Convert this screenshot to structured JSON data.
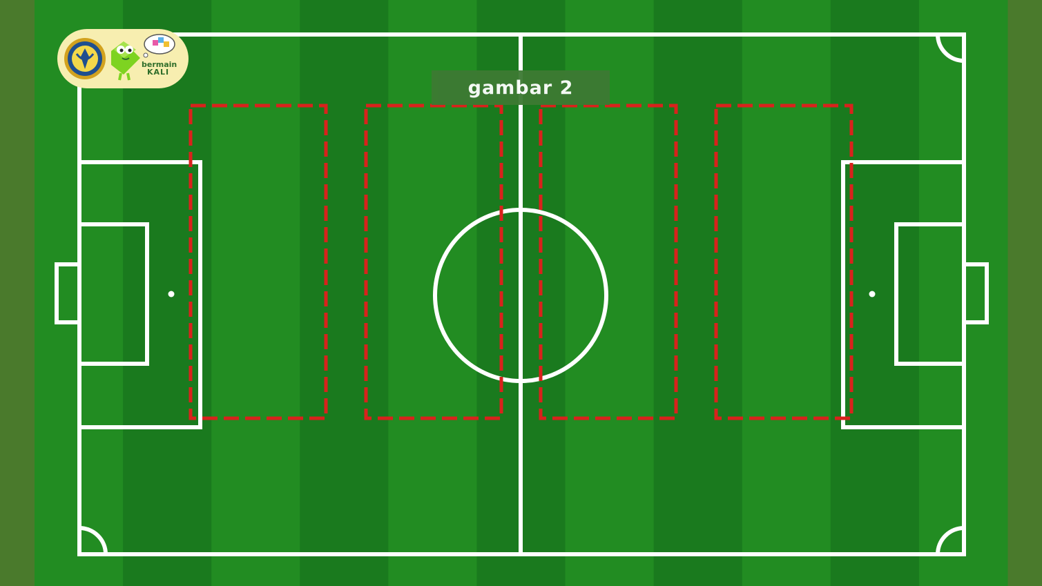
{
  "title": "gambar 2",
  "logo": {
    "icon": "university-emblem-icon",
    "mascot": "green-mascot-icon",
    "line1": "bermain",
    "line2": "KALI"
  },
  "colors": {
    "grass_dark": "#1a7a1e",
    "grass_light": "#228c22",
    "sideline_strip": "#4a7a2c",
    "pitch_lines": "#ffffff",
    "zone_dash": "#d9221c",
    "title_bg": "#3d7a33",
    "logo_bg": "#f7eeb0"
  },
  "zones_marked": 4
}
